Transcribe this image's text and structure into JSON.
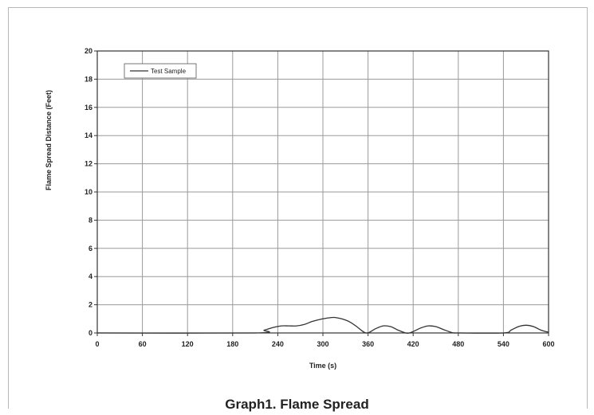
{
  "caption": "Graph1. Flame Spread",
  "chart_data": {
    "type": "line",
    "title": "",
    "xlabel": "Time (s)",
    "ylabel": "Flame Spread Distance (Feet)",
    "xlim": [
      0,
      600
    ],
    "ylim": [
      0,
      20
    ],
    "xticks": [
      0,
      60,
      120,
      180,
      240,
      300,
      360,
      420,
      480,
      540,
      600
    ],
    "yticks": [
      0,
      2,
      4,
      6,
      8,
      10,
      12,
      14,
      16,
      18,
      20
    ],
    "grid": true,
    "legend_position": "top-left",
    "colors": {
      "series": "#333333",
      "grid": "#9a9a9a",
      "axis": "#333333",
      "text": "#222222"
    },
    "series": [
      {
        "name": "Test Sample",
        "x": [
          0,
          210,
          222,
          235,
          245,
          255,
          265,
          275,
          285,
          295,
          305,
          315,
          325,
          335,
          345,
          352,
          357,
          362,
          370,
          380,
          390,
          400,
          410,
          415,
          420,
          430,
          440,
          450,
          460,
          470,
          475,
          480,
          540,
          550,
          560,
          570,
          580,
          590,
          600
        ],
        "y": [
          0,
          0,
          0.2,
          0.4,
          0.5,
          0.5,
          0.5,
          0.6,
          0.8,
          0.95,
          1.05,
          1.1,
          1.0,
          0.8,
          0.45,
          0.15,
          0.0,
          0.05,
          0.3,
          0.5,
          0.45,
          0.2,
          0.0,
          0.0,
          0.1,
          0.35,
          0.5,
          0.45,
          0.25,
          0.05,
          0.0,
          0.0,
          0.0,
          0.2,
          0.45,
          0.55,
          0.45,
          0.2,
          0.05
        ]
      }
    ]
  }
}
